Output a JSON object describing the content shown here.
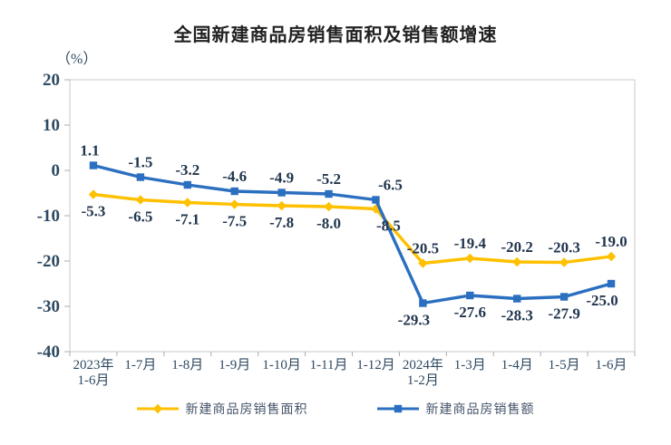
{
  "chart_data": {
    "type": "line",
    "title": "全国新建商品房销售面积及销售额增速",
    "y_unit": "（%）",
    "categories": [
      "2023年\n1-6月",
      "1-7月",
      "1-8月",
      "1-9月",
      "1-10月",
      "1-11月",
      "1-12月",
      "2024年\n1-2月",
      "1-3月",
      "1-4月",
      "1-5月",
      "1-6月"
    ],
    "series": [
      {
        "name": "新建商品房销售面积",
        "color": "#FFC000",
        "marker": "diamond",
        "values": [
          -5.3,
          -6.5,
          -7.1,
          -7.5,
          -7.8,
          -8.0,
          -8.5,
          -20.5,
          -19.4,
          -20.2,
          -20.3,
          -19.0
        ],
        "label_side": [
          "below",
          "below",
          "below",
          "below",
          "below",
          "below",
          "below",
          "above",
          "above",
          "above",
          "above",
          "above"
        ],
        "label_dx": [
          0,
          0,
          0,
          0,
          0,
          0,
          14,
          0,
          0,
          0,
          0,
          0
        ]
      },
      {
        "name": "新建商品房销售额",
        "color": "#2B6FC0",
        "marker": "square",
        "values": [
          1.1,
          -1.5,
          -3.2,
          -4.6,
          -4.9,
          -5.2,
          -6.5,
          -29.3,
          -27.6,
          -28.3,
          -27.9,
          -25.0
        ],
        "label_side": [
          "above",
          "above",
          "above",
          "above",
          "above",
          "above",
          "above",
          "below",
          "below",
          "below",
          "below",
          "below"
        ],
        "label_dx": [
          -4,
          0,
          0,
          0,
          0,
          0,
          16,
          -10,
          0,
          0,
          0,
          -10
        ]
      }
    ],
    "ylim": [
      -40,
      20
    ],
    "y_ticks": [
      20,
      10,
      0,
      -10,
      -20,
      -30,
      -40
    ],
    "grid": false,
    "legend_position": "bottom",
    "colors": {
      "plot_border": "#C9C9C9",
      "tick": "#ADADAD",
      "axis_text": "#2E4A62",
      "data_label_text": "#22364F",
      "title_text": "#212121",
      "legend_text": "#44546A"
    }
  }
}
